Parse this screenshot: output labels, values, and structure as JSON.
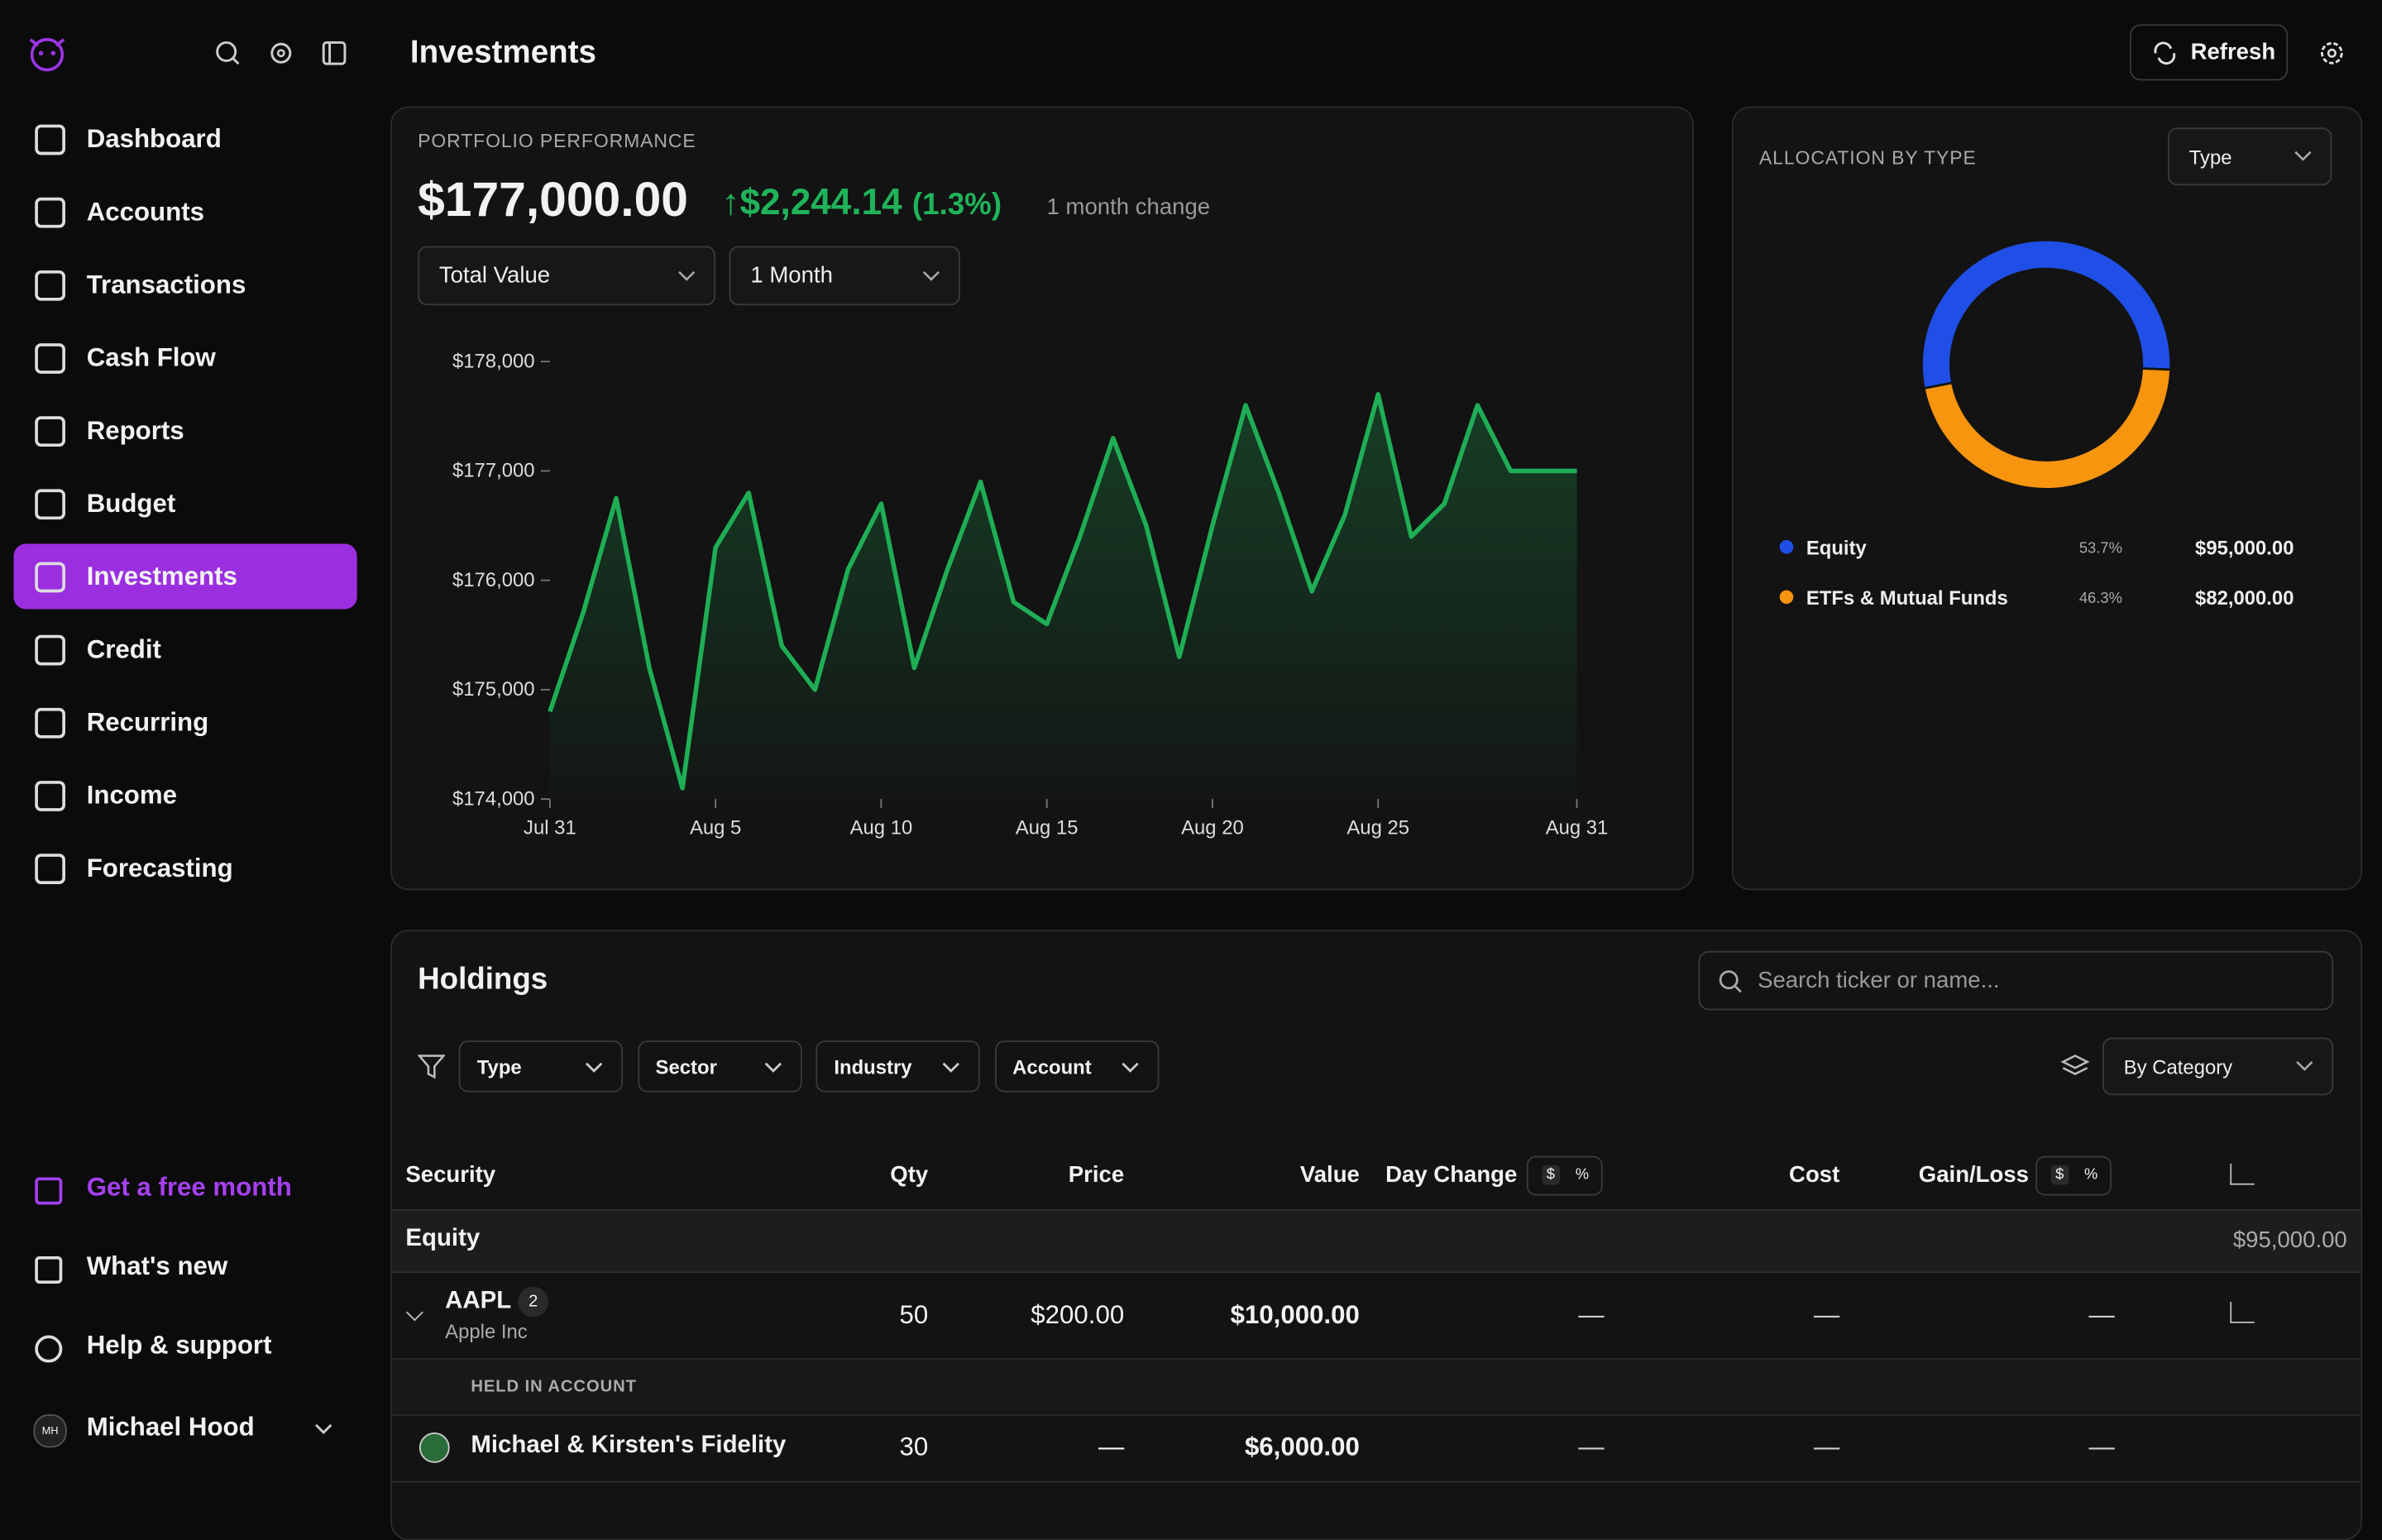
{
  "sidebar": {
    "nav": [
      {
        "label": "Dashboard"
      },
      {
        "label": "Accounts"
      },
      {
        "label": "Transactions"
      },
      {
        "label": "Cash Flow"
      },
      {
        "label": "Reports"
      },
      {
        "label": "Budget"
      },
      {
        "label": "Investments",
        "active": true
      },
      {
        "label": "Credit"
      },
      {
        "label": "Recurring"
      },
      {
        "label": "Income"
      },
      {
        "label": "Forecasting"
      }
    ],
    "footer": [
      "Get a free month",
      "What's new",
      "Help & support"
    ],
    "user": {
      "initials": "MH",
      "name": "Michael Hood"
    }
  },
  "header": {
    "title": "Investments",
    "refresh": "Refresh"
  },
  "performance": {
    "total": "$177,000.00",
    "change": "$2,244.14",
    "change_pct": "(1.3%)",
    "change_note": "1 month change",
    "metric": "Total Value",
    "range": "1 Month"
  },
  "allocation": {
    "group": "Type",
    "amounts": [
      "$95,000.00",
      "$82,000.00"
    ]
  },
  "chart_data": [
    {
      "type": "line",
      "title": "PORTFOLIO PERFORMANCE",
      "color": "#1fae55",
      "categories": [
        "Jul 31",
        null,
        null,
        null,
        null,
        "Aug 5",
        null,
        null,
        null,
        null,
        "Aug 10",
        null,
        null,
        null,
        null,
        "Aug 15",
        null,
        null,
        null,
        null,
        "Aug 20",
        null,
        null,
        null,
        null,
        "Aug 25",
        null,
        null,
        null,
        null,
        null,
        "Aug 31"
      ],
      "values": [
        174800,
        175700,
        176750,
        175200,
        174100,
        176300,
        176800,
        175400,
        175000,
        176100,
        176700,
        175200,
        176100,
        176900,
        175800,
        175600,
        176400,
        177300,
        176500,
        175300,
        176500,
        177600,
        176800,
        175900,
        176600,
        177700,
        176400,
        176700,
        177600,
        177000,
        177000,
        177000
      ],
      "ylim": [
        174000,
        178000
      ],
      "yticks": [
        {
          "value": 174000,
          "label": "$174,000"
        },
        {
          "value": 175000,
          "label": "$175,000"
        },
        {
          "value": 176000,
          "label": "$176,000"
        },
        {
          "value": 177000,
          "label": "$177,000"
        },
        {
          "value": 178000,
          "label": "$178,000"
        }
      ]
    },
    {
      "type": "pie",
      "title": "ALLOCATION BY TYPE",
      "categories": [
        "Equity",
        "ETFs & Mutual Funds"
      ],
      "values": [
        53.7,
        46.3
      ],
      "value_labels": [
        "53.7%",
        "46.3%"
      ],
      "colors": [
        "#1f4fe6",
        "#f7950f"
      ]
    }
  ],
  "holdings": {
    "title": "Holdings",
    "search": "Search ticker or name...",
    "filters": [
      "Type",
      "Sector",
      "Industry",
      "Account"
    ],
    "grouping": "By Category",
    "columns": [
      "Security",
      "Qty",
      "Price",
      "Value",
      "Day Change",
      "Cost",
      "Gain/Loss"
    ],
    "toggle": [
      "$",
      "%"
    ],
    "group": {
      "name": "Equity",
      "total": "$95,000.00"
    },
    "row": {
      "ticker": "AAPL",
      "count": "2",
      "name": "Apple Inc",
      "qty": "50",
      "price": "$200.00",
      "value": "$10,000.00",
      "day_change": "—",
      "cost": "—",
      "gain": "—"
    },
    "held_label": "HELD IN ACCOUNT",
    "account": {
      "name": "Michael & Kirsten's Fidelity",
      "qty": "30",
      "price": "—",
      "value": "$6,000.00",
      "day_change": "—",
      "cost": "—",
      "gain": "—"
    }
  }
}
